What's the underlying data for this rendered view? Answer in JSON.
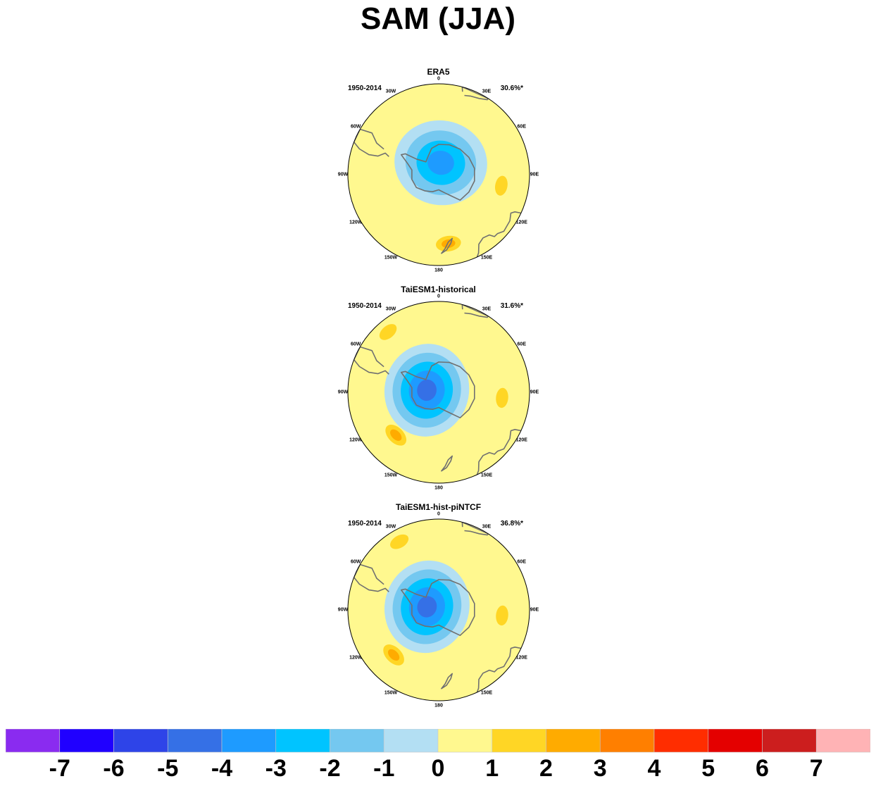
{
  "title": "SAM (JJA)",
  "chart_data": [
    {
      "type": "heatmap",
      "projection": "south-polar-stereographic",
      "title": "ERA5",
      "period": "1950-2014",
      "explained_variance": "30.6%*",
      "longitude_labels": [
        "0",
        "30E",
        "60E",
        "90E",
        "120E",
        "150E",
        "180",
        "150W",
        "120W",
        "90W",
        "60W",
        "30W"
      ],
      "features": [
        {
          "value": -3,
          "lon": 10,
          "colat": 8
        },
        {
          "value": 1,
          "lon": 100,
          "colat": 42
        },
        {
          "value": 2,
          "lon": 172,
          "colat": 46
        }
      ]
    },
    {
      "type": "heatmap",
      "projection": "south-polar-stereographic",
      "title": "TaiESM1-historical",
      "period": "1950-2014",
      "explained_variance": "31.6%*",
      "longitude_labels": [
        "0",
        "30E",
        "60E",
        "90E",
        "120E",
        "150E",
        "180",
        "150W",
        "120W",
        "90W",
        "60W",
        "30W"
      ],
      "features": [
        {
          "value": -4,
          "lon": -80,
          "colat": 8
        },
        {
          "value": 2,
          "lon": -135,
          "colat": 40
        },
        {
          "value": 1,
          "lon": 95,
          "colat": 42
        },
        {
          "value": 1,
          "lon": -40,
          "colat": 52
        }
      ]
    },
    {
      "type": "heatmap",
      "projection": "south-polar-stereographic",
      "title": "TaiESM1-hist-piNTCF",
      "period": "1950-2014",
      "explained_variance": "36.8%*",
      "longitude_labels": [
        "0",
        "30E",
        "60E",
        "90E",
        "120E",
        "150E",
        "180",
        "150W",
        "120W",
        "90W",
        "60W",
        "30W"
      ],
      "features": [
        {
          "value": -4,
          "lon": -75,
          "colat": 8
        },
        {
          "value": 2,
          "lon": -135,
          "colat": 42
        },
        {
          "value": 1,
          "lon": 95,
          "colat": 42
        },
        {
          "value": 1,
          "lon": -30,
          "colat": 52
        }
      ]
    }
  ],
  "colorbar": {
    "levels": [
      "-7",
      "-6",
      "-5",
      "-4",
      "-3",
      "-2",
      "-1",
      "0",
      "1",
      "2",
      "3",
      "4",
      "5",
      "6",
      "7"
    ],
    "colors": [
      "#8a2bf0",
      "#2000ff",
      "#2e44e8",
      "#3570e6",
      "#1e9bff",
      "#00c4ff",
      "#74c8f0",
      "#b3dff3",
      "#fff88f",
      "#ffd625",
      "#ffab00",
      "#ff7f00",
      "#ff2d00",
      "#e40000",
      "#cc1e1e",
      "#ffb3b5"
    ]
  }
}
